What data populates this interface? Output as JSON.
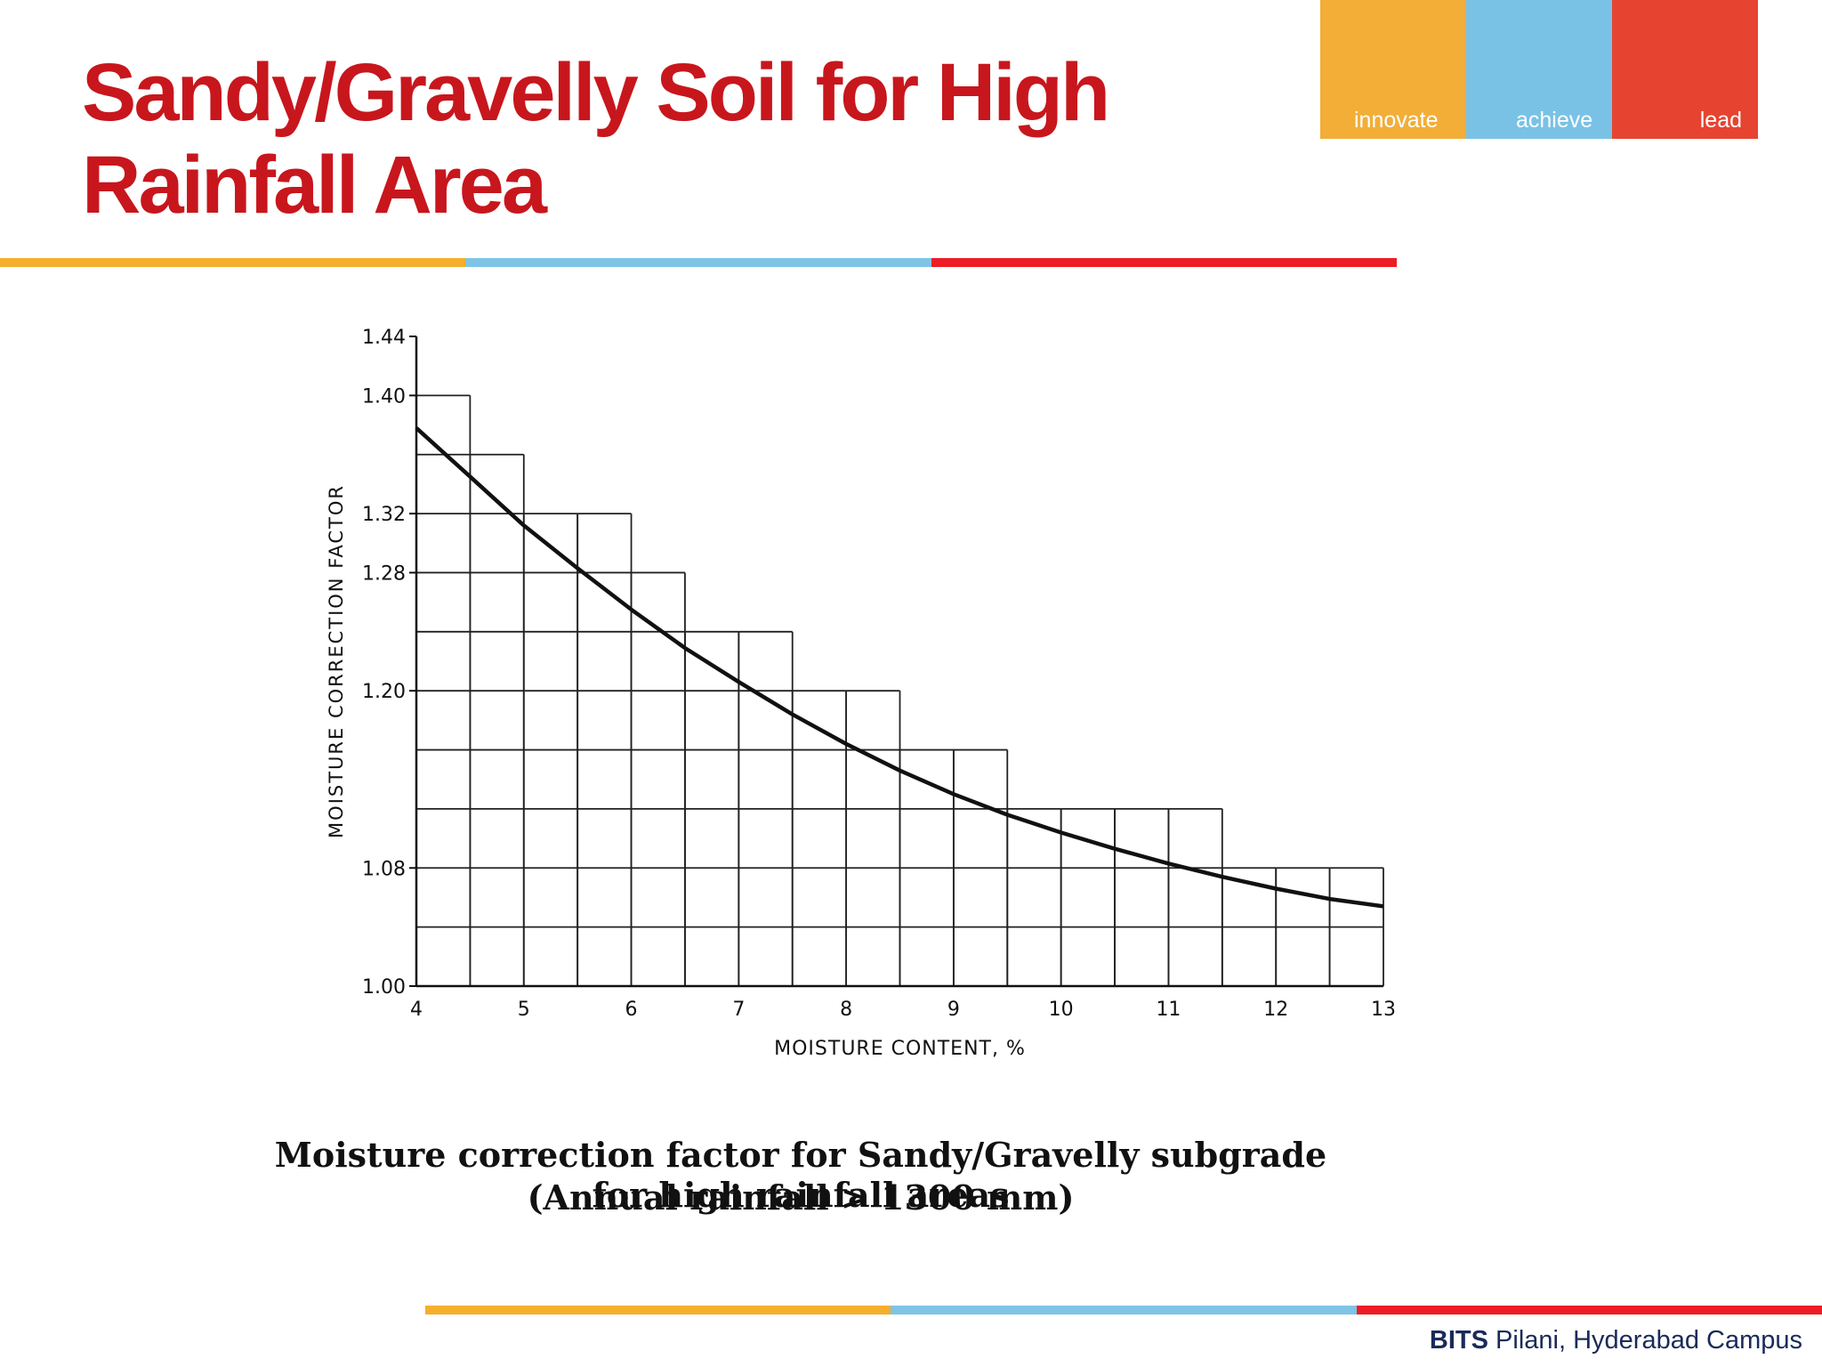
{
  "slide": {
    "title": "Sandy/Gravelly Soil for High Rainfall Area",
    "logo": {
      "innovate": "innovate",
      "achieve": "achieve",
      "lead": "lead"
    },
    "footer": {
      "bold": "BITS",
      "rest": " Pilani, Hyderabad Campus"
    },
    "caption_line1": "Moisture correction factor for Sandy/Gravelly subgrade for high rainfall areas",
    "caption_line2": "(Annual rainfall  > 1300 mm)",
    "colors": {
      "title": "#c8161d",
      "orange": "#f6ae2d",
      "blue": "#7ec4e6",
      "red": "#ee1c25"
    }
  },
  "chart_data": {
    "type": "line",
    "title": "",
    "xlabel": "MOISTURE CONTENT, %",
    "ylabel": "MOISTURE CORRECTION FACTOR",
    "xlim": [
      4,
      13
    ],
    "ylim": [
      1.0,
      1.44
    ],
    "x_ticks": [
      "4",
      "5",
      "6",
      "7",
      "8",
      "9",
      "10",
      "11",
      "12",
      "13"
    ],
    "y_ticks": [
      "1.00",
      "1.08",
      "1.20",
      "1.28",
      "1.32",
      "1.40",
      "1.44"
    ],
    "grid": true,
    "series": [
      {
        "x": [
          4.0,
          4.5,
          5.0,
          5.5,
          6.0,
          6.5,
          7.0,
          7.5,
          8.0,
          8.5,
          9.0,
          9.5,
          10.0,
          10.5,
          11.0,
          11.5,
          12.0,
          12.5,
          13.0
        ],
        "y": [
          1.378,
          1.345,
          1.312,
          1.283,
          1.255,
          1.229,
          1.206,
          1.184,
          1.164,
          1.146,
          1.13,
          1.116,
          1.104,
          1.093,
          1.083,
          1.074,
          1.066,
          1.059,
          1.054
        ]
      }
    ]
  }
}
